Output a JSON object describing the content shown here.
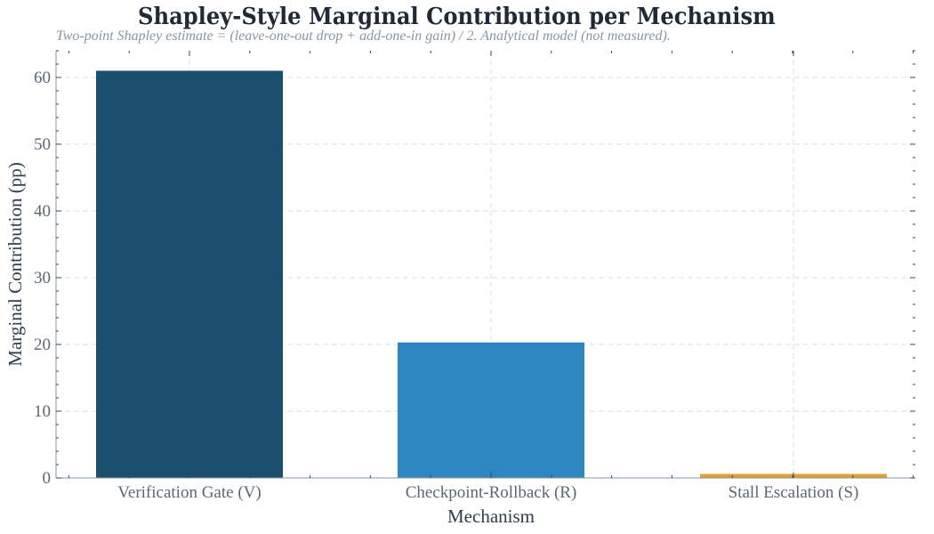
{
  "chart_data": {
    "type": "bar",
    "title": "Shapley-Style Marginal Contribution per Mechanism",
    "subtitle": "Two-point Shapley estimate = (leave-one-out drop + add-one-in gain) / 2. Analytical model (not measured).",
    "xlabel": "Mechanism",
    "ylabel": "Marginal Contribution (pp)",
    "categories": [
      "Verification Gate (V)",
      "Checkpoint-Rollback (R)",
      "Stall Escalation (S)"
    ],
    "values": [
      61.0,
      20.3,
      0.6
    ],
    "colors": [
      "#1b4f6e",
      "#2e86c1",
      "#e0a130"
    ],
    "ylim": [
      0,
      64
    ],
    "yticks": [
      0,
      10,
      20,
      30,
      40,
      50,
      60
    ],
    "grid": true,
    "legend": "none"
  }
}
